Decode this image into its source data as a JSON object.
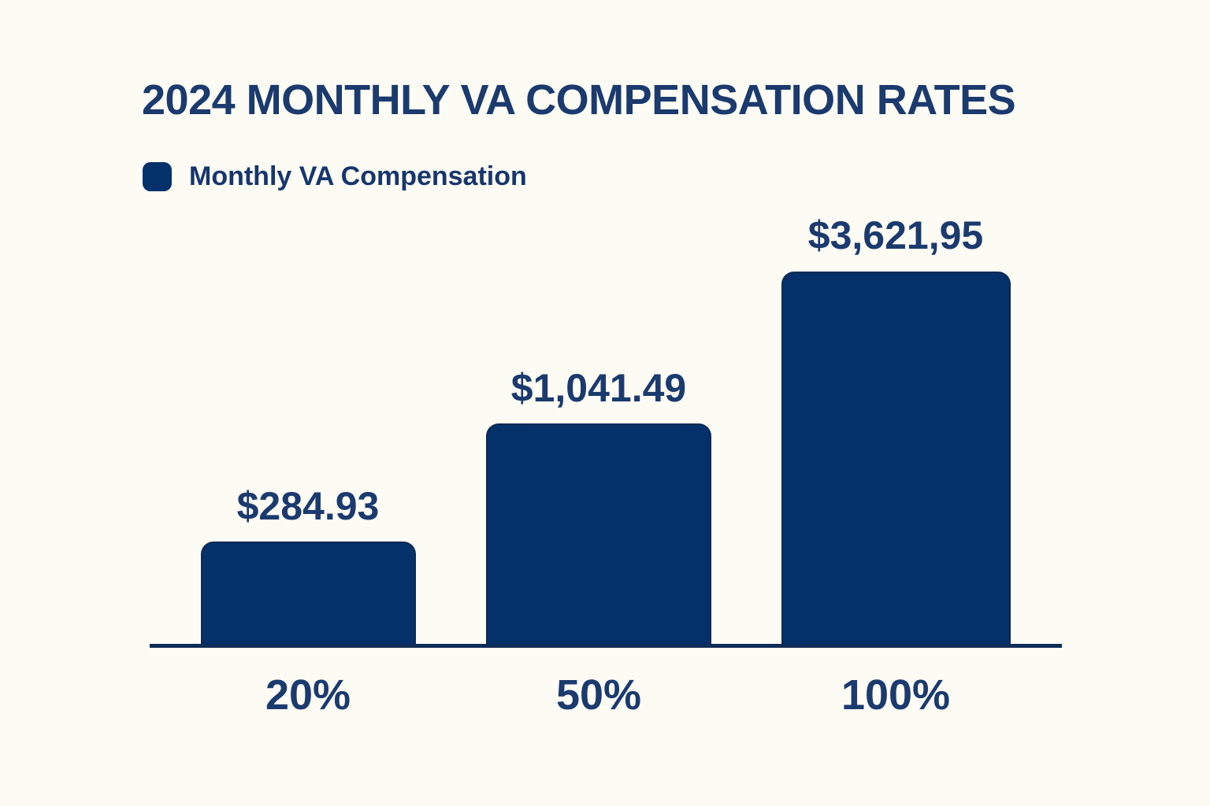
{
  "page": {
    "background_color": "#FCFBF4",
    "text_color": "#1B3A6E"
  },
  "chart_data": {
    "type": "bar",
    "title": "2024 MONTHLY VA COMPENSATION RATES",
    "legend": {
      "label": "Monthly VA Compensation",
      "swatch_color": "#04316A",
      "position": "top-left"
    },
    "categories": [
      "20%",
      "50%",
      "100%"
    ],
    "values": [
      284.93,
      1041.49,
      3621.95
    ],
    "value_labels": [
      "$284.93",
      "$1,041.49",
      "$3,621,95"
    ],
    "xlabel": "",
    "ylabel": "",
    "grid": false,
    "legend_visible": true,
    "bar_color": "#04316A",
    "axis_color": "#0F2D56"
  }
}
